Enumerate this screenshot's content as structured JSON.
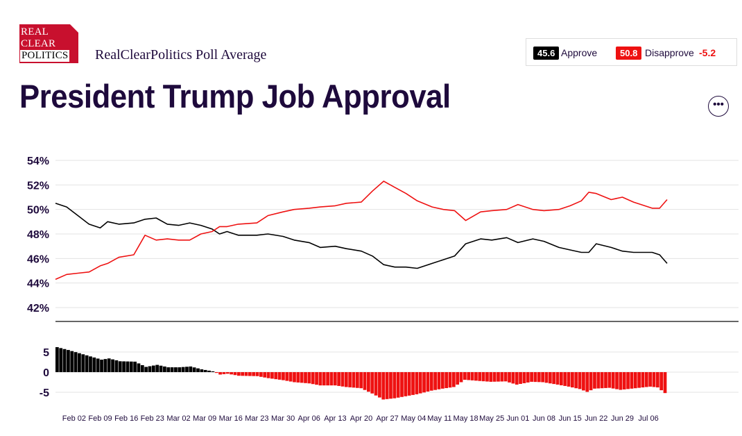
{
  "logo": {
    "line1": "REAL",
    "line2": "CLEAR",
    "line3": "POLITICS"
  },
  "header": {
    "subtitle": "RealClearPolitics Poll Average",
    "title": "President Trump Job Approval"
  },
  "legend": {
    "approve_value": "45.6",
    "approve_label": "Approve",
    "disapprove_value": "50.8",
    "disapprove_label": "Disapprove",
    "spread": "-5.2"
  },
  "more_button": {
    "label": "•••"
  },
  "colors": {
    "approve": "#000000",
    "disapprove": "#ee1111",
    "text": "#1e0a3c",
    "grid": "#e3e3e3"
  },
  "chart_data": [
    {
      "type": "line",
      "ylim": [
        41,
        54
      ],
      "yticks": [
        "54%",
        "52%",
        "50%",
        "48%",
        "46%",
        "44%",
        "42%"
      ],
      "ytick_values": [
        54,
        52,
        50,
        48,
        46,
        44,
        42
      ],
      "x_start": "Jan 28",
      "x_end": "Jul 11",
      "xtick_labels": [
        "Feb 02",
        "Feb 09",
        "Feb 16",
        "Feb 23",
        "Mar 02",
        "Mar 09",
        "Mar 16",
        "Mar 23",
        "Mar 30",
        "Apr 06",
        "Apr 13",
        "Apr 20",
        "Apr 27",
        "May 04",
        "May 11",
        "May 18",
        "May 25",
        "Jun 01",
        "Jun 08",
        "Jun 15",
        "Jun 22",
        "Jun 29",
        "Jul 06"
      ],
      "x": [
        "Jan 28",
        "Jan 31",
        "Feb 03",
        "Feb 06",
        "Feb 09",
        "Feb 11",
        "Feb 14",
        "Feb 18",
        "Feb 21",
        "Feb 24",
        "Feb 27",
        "Mar 02",
        "Mar 05",
        "Mar 08",
        "Mar 11",
        "Mar 13",
        "Mar 15",
        "Mar 18",
        "Mar 23",
        "Mar 26",
        "Mar 30",
        "Apr 02",
        "Apr 06",
        "Apr 09",
        "Apr 13",
        "Apr 16",
        "Apr 20",
        "Apr 23",
        "Apr 26",
        "Apr 29",
        "May 02",
        "May 05",
        "May 09",
        "May 12",
        "May 15",
        "May 18",
        "May 22",
        "May 25",
        "May 29",
        "Jun 01",
        "Jun 05",
        "Jun 08",
        "Jun 12",
        "Jun 15",
        "Jun 18",
        "Jun 20",
        "Jun 22",
        "Jun 26",
        "Jun 29",
        "Jul 02",
        "Jul 04",
        "Jul 07",
        "Jul 09",
        "Jul 11"
      ],
      "series": [
        {
          "name": "Approve",
          "values": [
            50.5,
            50.2,
            49.5,
            48.8,
            48.5,
            49.0,
            48.8,
            48.9,
            49.2,
            49.3,
            48.8,
            48.7,
            48.9,
            48.7,
            48.4,
            48.0,
            48.2,
            47.9,
            47.9,
            48.0,
            47.8,
            47.5,
            47.3,
            46.9,
            47.0,
            46.8,
            46.6,
            46.2,
            45.5,
            45.3,
            45.3,
            45.2,
            45.6,
            45.9,
            46.2,
            47.2,
            47.6,
            47.5,
            47.7,
            47.3,
            47.6,
            47.4,
            46.9,
            46.7,
            46.5,
            46.5,
            47.2,
            46.9,
            46.6,
            46.5,
            46.5,
            46.5,
            46.3,
            45.6
          ]
        },
        {
          "name": "Disapprove",
          "values": [
            44.3,
            44.7,
            44.8,
            44.9,
            45.4,
            45.6,
            46.1,
            46.3,
            47.9,
            47.5,
            47.6,
            47.5,
            47.5,
            48.0,
            48.2,
            48.6,
            48.6,
            48.8,
            48.9,
            49.5,
            49.8,
            50.0,
            50.1,
            50.2,
            50.3,
            50.5,
            50.6,
            51.5,
            52.3,
            51.8,
            51.3,
            50.7,
            50.2,
            50.0,
            49.9,
            49.1,
            49.8,
            49.9,
            50.0,
            50.4,
            50.0,
            49.9,
            50.0,
            50.3,
            50.7,
            51.4,
            51.3,
            50.8,
            51.0,
            50.6,
            50.4,
            50.1,
            50.1,
            50.8
          ]
        }
      ]
    },
    {
      "type": "bar",
      "series_name": "Spread",
      "ylim": [
        -8,
        7
      ],
      "yticks": [
        "5",
        "0",
        "-5"
      ],
      "ytick_values": [
        5,
        0,
        -5
      ],
      "x_start": "Jan 28",
      "x_end": "Jul 11",
      "x": [
        "Jan 28",
        "Jan 31",
        "Feb 03",
        "Feb 06",
        "Feb 09",
        "Feb 11",
        "Feb 14",
        "Feb 18",
        "Feb 21",
        "Feb 24",
        "Feb 27",
        "Mar 02",
        "Mar 05",
        "Mar 08",
        "Mar 11",
        "Mar 13",
        "Mar 15",
        "Mar 18",
        "Mar 23",
        "Mar 26",
        "Mar 30",
        "Apr 02",
        "Apr 06",
        "Apr 09",
        "Apr 13",
        "Apr 16",
        "Apr 20",
        "Apr 23",
        "Apr 26",
        "Apr 29",
        "May 02",
        "May 05",
        "May 09",
        "May 12",
        "May 15",
        "May 18",
        "May 22",
        "May 25",
        "May 29",
        "Jun 01",
        "Jun 05",
        "Jun 08",
        "Jun 12",
        "Jun 15",
        "Jun 18",
        "Jun 20",
        "Jun 22",
        "Jun 26",
        "Jun 29",
        "Jul 02",
        "Jul 04",
        "Jul 07",
        "Jul 09",
        "Jul 11"
      ],
      "values": [
        6.2,
        5.5,
        4.7,
        3.9,
        3.1,
        3.4,
        2.7,
        2.6,
        1.3,
        1.8,
        1.2,
        1.2,
        1.4,
        0.7,
        0.2,
        -0.6,
        -0.4,
        -0.9,
        -1.0,
        -1.5,
        -2.0,
        -2.5,
        -2.8,
        -3.3,
        -3.3,
        -3.7,
        -4.0,
        -5.3,
        -6.8,
        -6.5,
        -6.0,
        -5.5,
        -4.6,
        -4.1,
        -3.7,
        -1.9,
        -2.2,
        -2.4,
        -2.3,
        -3.1,
        -2.4,
        -2.5,
        -3.1,
        -3.6,
        -4.2,
        -4.9,
        -4.1,
        -3.9,
        -4.4,
        -4.1,
        -3.9,
        -3.6,
        -3.8,
        -5.2
      ]
    }
  ]
}
